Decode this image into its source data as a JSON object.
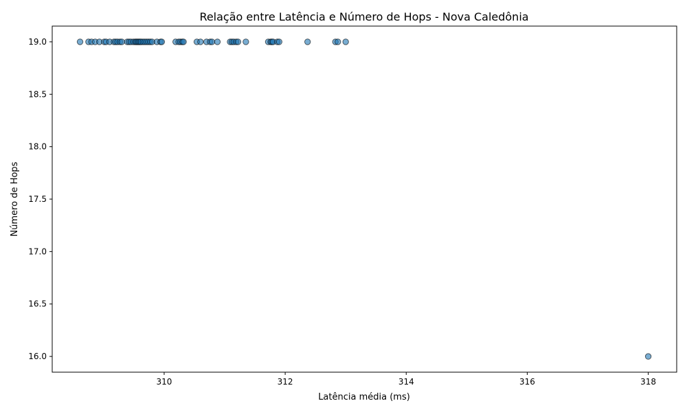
{
  "chart_data": {
    "type": "scatter",
    "title": "Relação entre Latência e Número de Hops - Nova Caledônia",
    "xlabel": "Latência média (ms)",
    "ylabel": "Número de Hops",
    "xlim": [
      308.15,
      318.47
    ],
    "ylim": [
      15.85,
      19.15
    ],
    "xticks": [
      310,
      312,
      314,
      316,
      318
    ],
    "xtick_labels": [
      "310",
      "312",
      "314",
      "316",
      "318"
    ],
    "yticks": [
      16.0,
      16.5,
      17.0,
      17.5,
      18.0,
      18.5,
      19.0
    ],
    "ytick_labels": [
      "16.0",
      "16.5",
      "17.0",
      "17.5",
      "18.0",
      "18.5",
      "19.0"
    ],
    "grid": false,
    "marker_color": "#1f77b4",
    "marker_edge_color": "#000000",
    "marker_alpha": 0.6,
    "points": [
      {
        "x": 308.61,
        "y": 19
      },
      {
        "x": 308.75,
        "y": 19
      },
      {
        "x": 308.8,
        "y": 19
      },
      {
        "x": 308.86,
        "y": 19
      },
      {
        "x": 308.93,
        "y": 19
      },
      {
        "x": 309.01,
        "y": 19
      },
      {
        "x": 309.04,
        "y": 19
      },
      {
        "x": 309.1,
        "y": 19
      },
      {
        "x": 309.17,
        "y": 19
      },
      {
        "x": 309.2,
        "y": 19
      },
      {
        "x": 309.23,
        "y": 19
      },
      {
        "x": 309.27,
        "y": 19
      },
      {
        "x": 309.3,
        "y": 19
      },
      {
        "x": 309.39,
        "y": 19
      },
      {
        "x": 309.42,
        "y": 19
      },
      {
        "x": 309.45,
        "y": 19
      },
      {
        "x": 309.49,
        "y": 19
      },
      {
        "x": 309.52,
        "y": 19
      },
      {
        "x": 309.54,
        "y": 19
      },
      {
        "x": 309.56,
        "y": 19
      },
      {
        "x": 309.58,
        "y": 19
      },
      {
        "x": 309.6,
        "y": 19
      },
      {
        "x": 309.62,
        "y": 19
      },
      {
        "x": 309.65,
        "y": 19
      },
      {
        "x": 309.68,
        "y": 19
      },
      {
        "x": 309.71,
        "y": 19
      },
      {
        "x": 309.74,
        "y": 19
      },
      {
        "x": 309.77,
        "y": 19
      },
      {
        "x": 309.8,
        "y": 19
      },
      {
        "x": 309.88,
        "y": 19
      },
      {
        "x": 309.94,
        "y": 19
      },
      {
        "x": 309.96,
        "y": 19
      },
      {
        "x": 310.19,
        "y": 19
      },
      {
        "x": 310.24,
        "y": 19
      },
      {
        "x": 310.27,
        "y": 19
      },
      {
        "x": 310.3,
        "y": 19
      },
      {
        "x": 310.32,
        "y": 19
      },
      {
        "x": 310.54,
        "y": 19
      },
      {
        "x": 310.6,
        "y": 19
      },
      {
        "x": 310.7,
        "y": 19
      },
      {
        "x": 310.76,
        "y": 19
      },
      {
        "x": 310.79,
        "y": 19
      },
      {
        "x": 310.88,
        "y": 19
      },
      {
        "x": 311.09,
        "y": 19
      },
      {
        "x": 311.12,
        "y": 19
      },
      {
        "x": 311.15,
        "y": 19
      },
      {
        "x": 311.19,
        "y": 19
      },
      {
        "x": 311.22,
        "y": 19
      },
      {
        "x": 311.35,
        "y": 19
      },
      {
        "x": 311.72,
        "y": 19
      },
      {
        "x": 311.76,
        "y": 19
      },
      {
        "x": 311.78,
        "y": 19
      },
      {
        "x": 311.8,
        "y": 19
      },
      {
        "x": 311.87,
        "y": 19
      },
      {
        "x": 311.9,
        "y": 19
      },
      {
        "x": 312.37,
        "y": 19
      },
      {
        "x": 312.83,
        "y": 19
      },
      {
        "x": 312.87,
        "y": 19
      },
      {
        "x": 313.0,
        "y": 19
      },
      {
        "x": 318.0,
        "y": 16
      }
    ]
  }
}
